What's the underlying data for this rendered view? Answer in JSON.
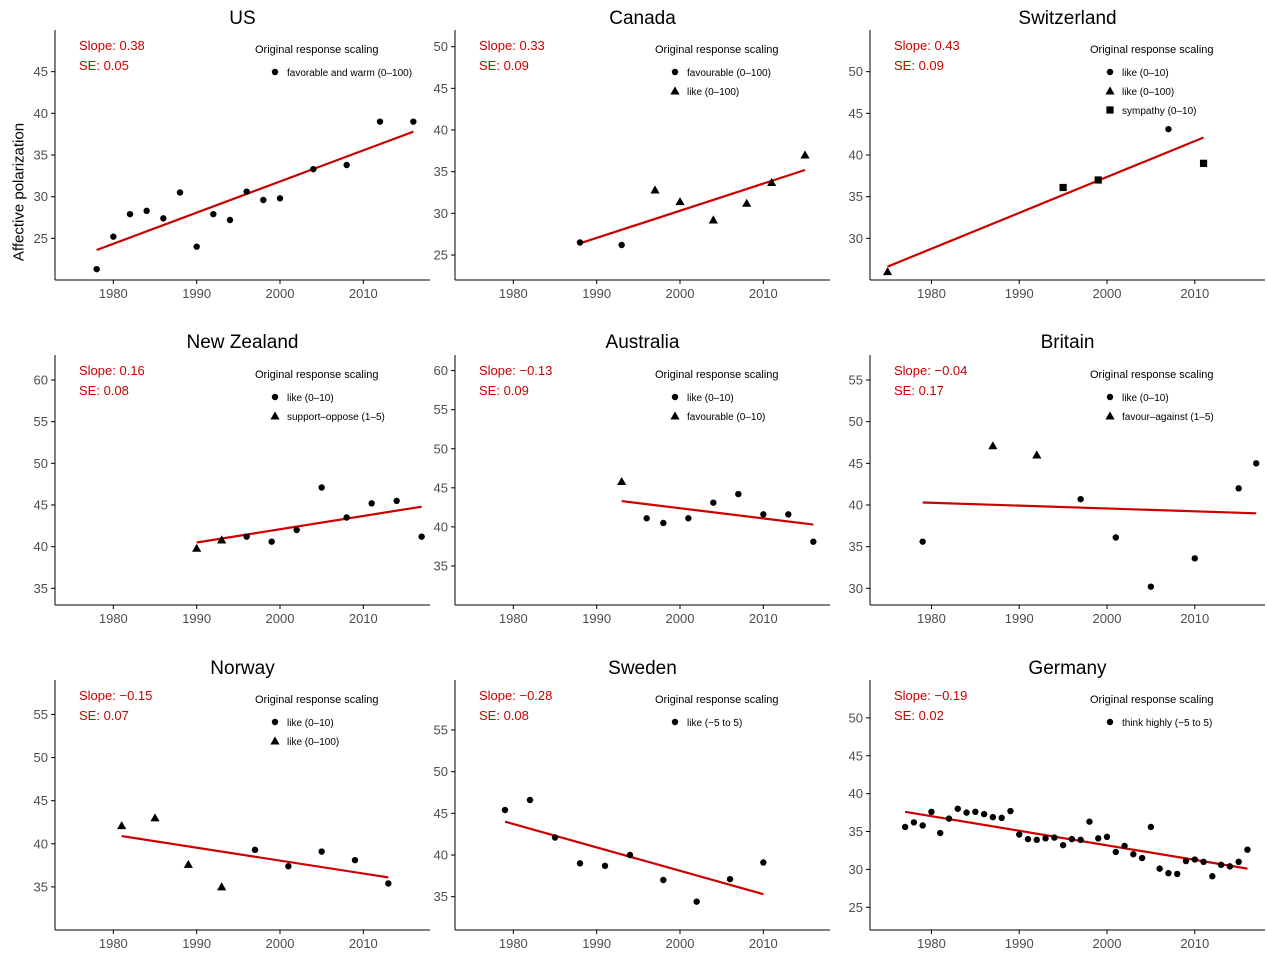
{
  "figure": {
    "ylabel": "Affective polarization",
    "legend_title": "Original response scaling",
    "line_color": "#cc0000",
    "stat_color": "#cc0000"
  },
  "chart_data": [
    {
      "type": "scatter",
      "title": "US",
      "slope_text": "Slope: 0.38",
      "se_text": "SE: 0.05",
      "xlim": [
        1973,
        2018
      ],
      "ylim": [
        20,
        50
      ],
      "xticks": [
        1980,
        1990,
        2000,
        2010
      ],
      "yticks": [
        25,
        30,
        35,
        40,
        45
      ],
      "legend": [
        {
          "shape": "circle",
          "label": "favorable and warm (0–100)"
        }
      ],
      "points": [
        {
          "x": 1978,
          "y": 21.3,
          "shape": "circle"
        },
        {
          "x": 1980,
          "y": 25.2,
          "shape": "circle"
        },
        {
          "x": 1982,
          "y": 27.9,
          "shape": "circle"
        },
        {
          "x": 1984,
          "y": 28.3,
          "shape": "circle"
        },
        {
          "x": 1986,
          "y": 27.4,
          "shape": "circle"
        },
        {
          "x": 1988,
          "y": 30.5,
          "shape": "circle"
        },
        {
          "x": 1990,
          "y": 24.0,
          "shape": "circle"
        },
        {
          "x": 1992,
          "y": 27.9,
          "shape": "circle"
        },
        {
          "x": 1994,
          "y": 27.2,
          "shape": "circle"
        },
        {
          "x": 1996,
          "y": 30.6,
          "shape": "circle"
        },
        {
          "x": 1998,
          "y": 29.6,
          "shape": "circle"
        },
        {
          "x": 2000,
          "y": 29.8,
          "shape": "circle"
        },
        {
          "x": 2004,
          "y": 33.3,
          "shape": "circle"
        },
        {
          "x": 2008,
          "y": 33.8,
          "shape": "circle"
        },
        {
          "x": 2012,
          "y": 39.0,
          "shape": "circle"
        },
        {
          "x": 2016,
          "y": 39.0,
          "shape": "circle"
        }
      ],
      "fit": {
        "x": [
          1978,
          2016
        ],
        "y": [
          23.6,
          37.8
        ]
      }
    },
    {
      "type": "scatter",
      "title": "Canada",
      "slope_text": "Slope: 0.33",
      "se_text": "SE: 0.09",
      "xlim": [
        1973,
        2018
      ],
      "ylim": [
        22,
        52
      ],
      "xticks": [
        1980,
        1990,
        2000,
        2010
      ],
      "yticks": [
        25,
        30,
        35,
        40,
        45,
        50
      ],
      "legend": [
        {
          "shape": "circle",
          "label": "favourable (0–100)"
        },
        {
          "shape": "triangle",
          "label": "like (0–100)"
        }
      ],
      "points": [
        {
          "x": 1988,
          "y": 26.5,
          "shape": "circle"
        },
        {
          "x": 1993,
          "y": 26.2,
          "shape": "circle"
        },
        {
          "x": 1997,
          "y": 32.8,
          "shape": "triangle"
        },
        {
          "x": 2000,
          "y": 31.4,
          "shape": "triangle"
        },
        {
          "x": 2004,
          "y": 29.2,
          "shape": "triangle"
        },
        {
          "x": 2008,
          "y": 31.2,
          "shape": "triangle"
        },
        {
          "x": 2011,
          "y": 33.7,
          "shape": "triangle"
        },
        {
          "x": 2015,
          "y": 37.0,
          "shape": "triangle"
        }
      ],
      "fit": {
        "x": [
          1988,
          2015
        ],
        "y": [
          26.4,
          35.2
        ]
      }
    },
    {
      "type": "scatter",
      "title": "Switzerland",
      "slope_text": "Slope: 0.43",
      "se_text": "SE: 0.09",
      "xlim": [
        1973,
        2018
      ],
      "ylim": [
        25,
        55
      ],
      "xticks": [
        1980,
        1990,
        2000,
        2010
      ],
      "yticks": [
        30,
        35,
        40,
        45,
        50
      ],
      "legend": [
        {
          "shape": "circle",
          "label": "like (0–10)"
        },
        {
          "shape": "triangle",
          "label": "like (0–100)"
        },
        {
          "shape": "square",
          "label": "sympathy (0–10)"
        }
      ],
      "points": [
        {
          "x": 1975,
          "y": 26.0,
          "shape": "triangle"
        },
        {
          "x": 1995,
          "y": 36.1,
          "shape": "square"
        },
        {
          "x": 1999,
          "y": 37.0,
          "shape": "square"
        },
        {
          "x": 2007,
          "y": 43.1,
          "shape": "circle"
        },
        {
          "x": 2011,
          "y": 39.0,
          "shape": "square"
        }
      ],
      "fit": {
        "x": [
          1975,
          2011
        ],
        "y": [
          26.6,
          42.1
        ]
      }
    },
    {
      "type": "scatter",
      "title": "New Zealand",
      "slope_text": "Slope: 0.16",
      "se_text": "SE: 0.08",
      "xlim": [
        1973,
        2018
      ],
      "ylim": [
        33,
        63
      ],
      "xticks": [
        1980,
        1990,
        2000,
        2010
      ],
      "yticks": [
        35,
        40,
        45,
        50,
        55,
        60
      ],
      "legend": [
        {
          "shape": "circle",
          "label": "like (0–10)"
        },
        {
          "shape": "triangle",
          "label": "support–oppose (1–5)"
        }
      ],
      "points": [
        {
          "x": 1990,
          "y": 39.8,
          "shape": "triangle"
        },
        {
          "x": 1993,
          "y": 40.8,
          "shape": "triangle"
        },
        {
          "x": 1996,
          "y": 41.2,
          "shape": "circle"
        },
        {
          "x": 1999,
          "y": 40.6,
          "shape": "circle"
        },
        {
          "x": 2002,
          "y": 42.0,
          "shape": "circle"
        },
        {
          "x": 2005,
          "y": 47.1,
          "shape": "circle"
        },
        {
          "x": 2008,
          "y": 43.5,
          "shape": "circle"
        },
        {
          "x": 2011,
          "y": 45.2,
          "shape": "circle"
        },
        {
          "x": 2014,
          "y": 45.5,
          "shape": "circle"
        },
        {
          "x": 2017,
          "y": 41.2,
          "shape": "circle"
        }
      ],
      "fit": {
        "x": [
          1990,
          2017
        ],
        "y": [
          40.5,
          44.8
        ]
      }
    },
    {
      "type": "scatter",
      "title": "Australia",
      "slope_text": "Slope: −0.13",
      "se_text": "SE: 0.09",
      "xlim": [
        1973,
        2018
      ],
      "ylim": [
        30,
        62
      ],
      "xticks": [
        1980,
        1990,
        2000,
        2010
      ],
      "yticks": [
        35,
        40,
        45,
        50,
        55,
        60
      ],
      "legend": [
        {
          "shape": "circle",
          "label": "like (0–10)"
        },
        {
          "shape": "triangle",
          "label": "favourable (0–10)"
        }
      ],
      "points": [
        {
          "x": 1993,
          "y": 45.8,
          "shape": "triangle"
        },
        {
          "x": 1996,
          "y": 41.1,
          "shape": "circle"
        },
        {
          "x": 1998,
          "y": 40.5,
          "shape": "circle"
        },
        {
          "x": 2001,
          "y": 41.1,
          "shape": "circle"
        },
        {
          "x": 2004,
          "y": 43.1,
          "shape": "circle"
        },
        {
          "x": 2007,
          "y": 44.2,
          "shape": "circle"
        },
        {
          "x": 2010,
          "y": 41.6,
          "shape": "circle"
        },
        {
          "x": 2013,
          "y": 41.6,
          "shape": "circle"
        },
        {
          "x": 2016,
          "y": 38.1,
          "shape": "circle"
        }
      ],
      "fit": {
        "x": [
          1993,
          2016
        ],
        "y": [
          43.3,
          40.3
        ]
      }
    },
    {
      "type": "scatter",
      "title": "Britain",
      "slope_text": "Slope: −0.04",
      "se_text": "SE: 0.17",
      "xlim": [
        1973,
        2018
      ],
      "ylim": [
        28,
        58
      ],
      "xticks": [
        1980,
        1990,
        2000,
        2010
      ],
      "yticks": [
        30,
        35,
        40,
        45,
        50,
        55
      ],
      "legend": [
        {
          "shape": "circle",
          "label": "like (0–10)"
        },
        {
          "shape": "triangle",
          "label": "favour–against (1–5)"
        }
      ],
      "points": [
        {
          "x": 1979,
          "y": 35.6,
          "shape": "circle"
        },
        {
          "x": 1987,
          "y": 47.1,
          "shape": "triangle"
        },
        {
          "x": 1992,
          "y": 46.0,
          "shape": "triangle"
        },
        {
          "x": 1997,
          "y": 40.7,
          "shape": "circle"
        },
        {
          "x": 2001,
          "y": 36.1,
          "shape": "circle"
        },
        {
          "x": 2005,
          "y": 30.2,
          "shape": "circle"
        },
        {
          "x": 2010,
          "y": 33.6,
          "shape": "circle"
        },
        {
          "x": 2015,
          "y": 42.0,
          "shape": "circle"
        },
        {
          "x": 2017,
          "y": 45.0,
          "shape": "circle"
        }
      ],
      "fit": {
        "x": [
          1979,
          2017
        ],
        "y": [
          40.3,
          39.0
        ]
      }
    },
    {
      "type": "scatter",
      "title": "Norway",
      "slope_text": "Slope: −0.15",
      "se_text": "SE: 0.07",
      "xlim": [
        1973,
        2018
      ],
      "ylim": [
        30,
        59
      ],
      "xticks": [
        1980,
        1990,
        2000,
        2010
      ],
      "yticks": [
        35,
        40,
        45,
        50,
        55
      ],
      "legend": [
        {
          "shape": "circle",
          "label": "like (0–10)"
        },
        {
          "shape": "triangle",
          "label": "like (0–100)"
        }
      ],
      "points": [
        {
          "x": 1981,
          "y": 42.1,
          "shape": "triangle"
        },
        {
          "x": 1985,
          "y": 43.0,
          "shape": "triangle"
        },
        {
          "x": 1989,
          "y": 37.6,
          "shape": "triangle"
        },
        {
          "x": 1993,
          "y": 35.0,
          "shape": "triangle"
        },
        {
          "x": 1997,
          "y": 39.3,
          "shape": "circle"
        },
        {
          "x": 2001,
          "y": 37.4,
          "shape": "circle"
        },
        {
          "x": 2005,
          "y": 39.1,
          "shape": "circle"
        },
        {
          "x": 2009,
          "y": 38.1,
          "shape": "circle"
        },
        {
          "x": 2013,
          "y": 35.4,
          "shape": "circle"
        }
      ],
      "fit": {
        "x": [
          1981,
          2013
        ],
        "y": [
          40.9,
          36.1
        ]
      }
    },
    {
      "type": "scatter",
      "title": "Sweden",
      "slope_text": "Slope: −0.28",
      "se_text": "SE: 0.08",
      "xlim": [
        1973,
        2018
      ],
      "ylim": [
        31,
        61
      ],
      "xticks": [
        1980,
        1990,
        2000,
        2010
      ],
      "yticks": [
        35,
        40,
        45,
        50,
        55
      ],
      "legend": [
        {
          "shape": "circle",
          "label": "like (−5 to 5)"
        }
      ],
      "points": [
        {
          "x": 1979,
          "y": 45.4,
          "shape": "circle"
        },
        {
          "x": 1982,
          "y": 46.6,
          "shape": "circle"
        },
        {
          "x": 1985,
          "y": 42.1,
          "shape": "circle"
        },
        {
          "x": 1988,
          "y": 39.0,
          "shape": "circle"
        },
        {
          "x": 1991,
          "y": 38.7,
          "shape": "circle"
        },
        {
          "x": 1994,
          "y": 40.0,
          "shape": "circle"
        },
        {
          "x": 1998,
          "y": 37.0,
          "shape": "circle"
        },
        {
          "x": 2002,
          "y": 34.4,
          "shape": "circle"
        },
        {
          "x": 2006,
          "y": 37.1,
          "shape": "circle"
        },
        {
          "x": 2010,
          "y": 39.1,
          "shape": "circle"
        }
      ],
      "fit": {
        "x": [
          1979,
          2010
        ],
        "y": [
          44.0,
          35.3
        ]
      }
    },
    {
      "type": "scatter",
      "title": "Germany",
      "slope_text": "Slope: −0.19",
      "se_text": "SE: 0.02",
      "xlim": [
        1973,
        2018
      ],
      "ylim": [
        22,
        55
      ],
      "xticks": [
        1980,
        1990,
        2000,
        2010
      ],
      "yticks": [
        25,
        30,
        35,
        40,
        45,
        50
      ],
      "legend": [
        {
          "shape": "circle",
          "label": "think highly (−5 to 5)"
        }
      ],
      "points": [
        {
          "x": 1977,
          "y": 35.6,
          "shape": "circle"
        },
        {
          "x": 1978,
          "y": 36.2,
          "shape": "circle"
        },
        {
          "x": 1979,
          "y": 35.8,
          "shape": "circle"
        },
        {
          "x": 1980,
          "y": 37.6,
          "shape": "circle"
        },
        {
          "x": 1981,
          "y": 34.8,
          "shape": "circle"
        },
        {
          "x": 1982,
          "y": 36.7,
          "shape": "circle"
        },
        {
          "x": 1983,
          "y": 38.0,
          "shape": "circle"
        },
        {
          "x": 1984,
          "y": 37.5,
          "shape": "circle"
        },
        {
          "x": 1985,
          "y": 37.6,
          "shape": "circle"
        },
        {
          "x": 1986,
          "y": 37.3,
          "shape": "circle"
        },
        {
          "x": 1987,
          "y": 36.9,
          "shape": "circle"
        },
        {
          "x": 1988,
          "y": 36.8,
          "shape": "circle"
        },
        {
          "x": 1989,
          "y": 37.7,
          "shape": "circle"
        },
        {
          "x": 1990,
          "y": 34.6,
          "shape": "circle"
        },
        {
          "x": 1991,
          "y": 34.0,
          "shape": "circle"
        },
        {
          "x": 1992,
          "y": 33.9,
          "shape": "circle"
        },
        {
          "x": 1993,
          "y": 34.1,
          "shape": "circle"
        },
        {
          "x": 1994,
          "y": 34.2,
          "shape": "circle"
        },
        {
          "x": 1995,
          "y": 33.2,
          "shape": "circle"
        },
        {
          "x": 1996,
          "y": 34.0,
          "shape": "circle"
        },
        {
          "x": 1997,
          "y": 33.9,
          "shape": "circle"
        },
        {
          "x": 1998,
          "y": 36.3,
          "shape": "circle"
        },
        {
          "x": 1999,
          "y": 34.1,
          "shape": "circle"
        },
        {
          "x": 2000,
          "y": 34.3,
          "shape": "circle"
        },
        {
          "x": 2001,
          "y": 32.3,
          "shape": "circle"
        },
        {
          "x": 2002,
          "y": 33.1,
          "shape": "circle"
        },
        {
          "x": 2003,
          "y": 32.0,
          "shape": "circle"
        },
        {
          "x": 2004,
          "y": 31.5,
          "shape": "circle"
        },
        {
          "x": 2005,
          "y": 35.6,
          "shape": "circle"
        },
        {
          "x": 2006,
          "y": 30.1,
          "shape": "circle"
        },
        {
          "x": 2007,
          "y": 29.5,
          "shape": "circle"
        },
        {
          "x": 2008,
          "y": 29.4,
          "shape": "circle"
        },
        {
          "x": 2009,
          "y": 31.1,
          "shape": "circle"
        },
        {
          "x": 2010,
          "y": 31.3,
          "shape": "circle"
        },
        {
          "x": 2011,
          "y": 31.0,
          "shape": "circle"
        },
        {
          "x": 2012,
          "y": 29.1,
          "shape": "circle"
        },
        {
          "x": 2013,
          "y": 30.6,
          "shape": "circle"
        },
        {
          "x": 2014,
          "y": 30.4,
          "shape": "circle"
        },
        {
          "x": 2015,
          "y": 31.0,
          "shape": "circle"
        },
        {
          "x": 2016,
          "y": 32.6,
          "shape": "circle"
        }
      ],
      "fit": {
        "x": [
          1977,
          2016
        ],
        "y": [
          37.6,
          30.1
        ]
      }
    }
  ]
}
